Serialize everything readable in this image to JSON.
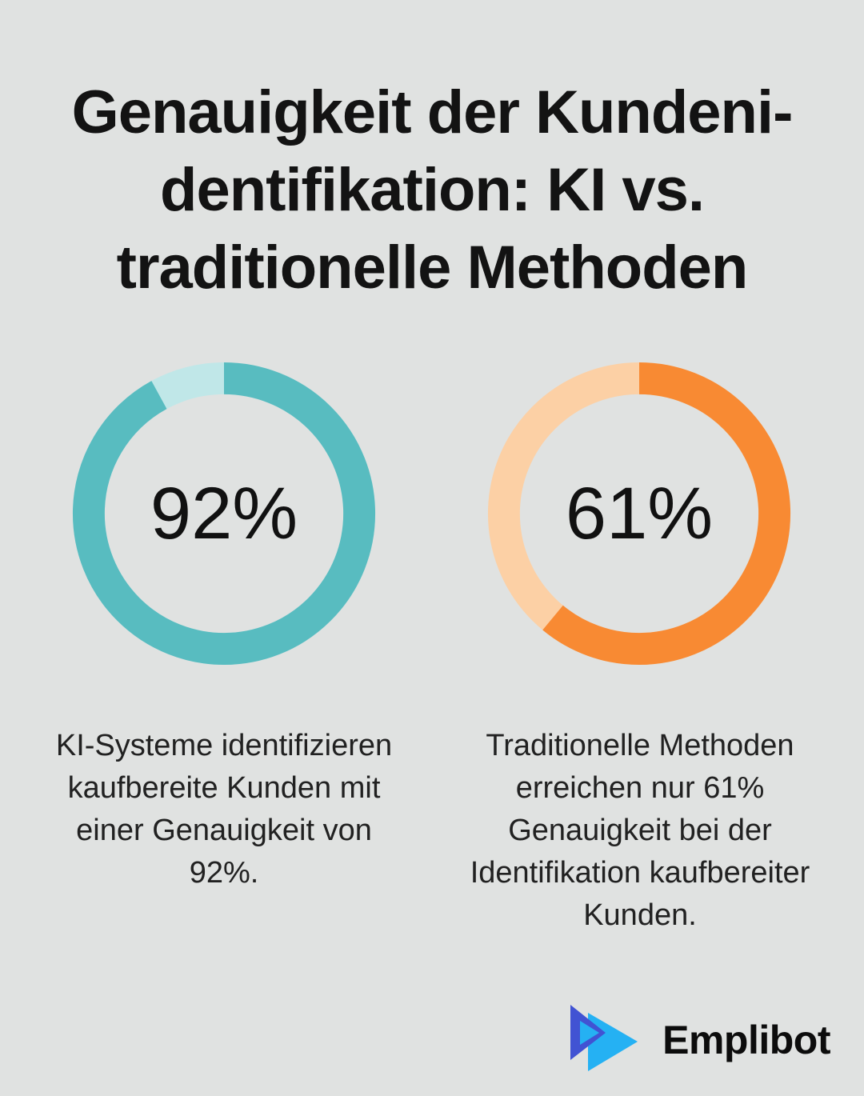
{
  "background_color": "#e0e2e1",
  "title_lines": [
    "Genauigkeit der Kundeni-",
    "dentifikation: KI vs.",
    "traditionelle Methoden"
  ],
  "title_text": "Genauigkeit der Kundenidentifikation: KI vs. traditionelle Methoden",
  "chart_data": [
    {
      "type": "donut",
      "name": "KI",
      "value": 92,
      "label": "92%",
      "color": "#58bcc0",
      "remainder_color": "#c0e7e8",
      "start_angle_deg": 0,
      "direction": "clockwise",
      "caption_lines": [
        "KI-Systeme identifizieren",
        "kaufbereite Kunden mit",
        "einer Genauigkeit von",
        "92%."
      ]
    },
    {
      "type": "donut",
      "name": "Traditionelle Methoden",
      "value": 61,
      "label": "61%",
      "color": "#f88a33",
      "remainder_color": "#fcd0a5",
      "start_angle_deg": 0,
      "direction": "clockwise",
      "caption_lines": [
        "Traditionelle Methoden",
        "erreichen nur 61%",
        "Genauigkeit bei der",
        "Identifikation kaufbereiter",
        "Kunden."
      ]
    }
  ],
  "footer": {
    "brand": "Emplibot",
    "logo_colors": {
      "back_triangle": "#25b1f3",
      "front_triangle": "#4153d3",
      "inner_triangle": "#25b1f3"
    }
  }
}
